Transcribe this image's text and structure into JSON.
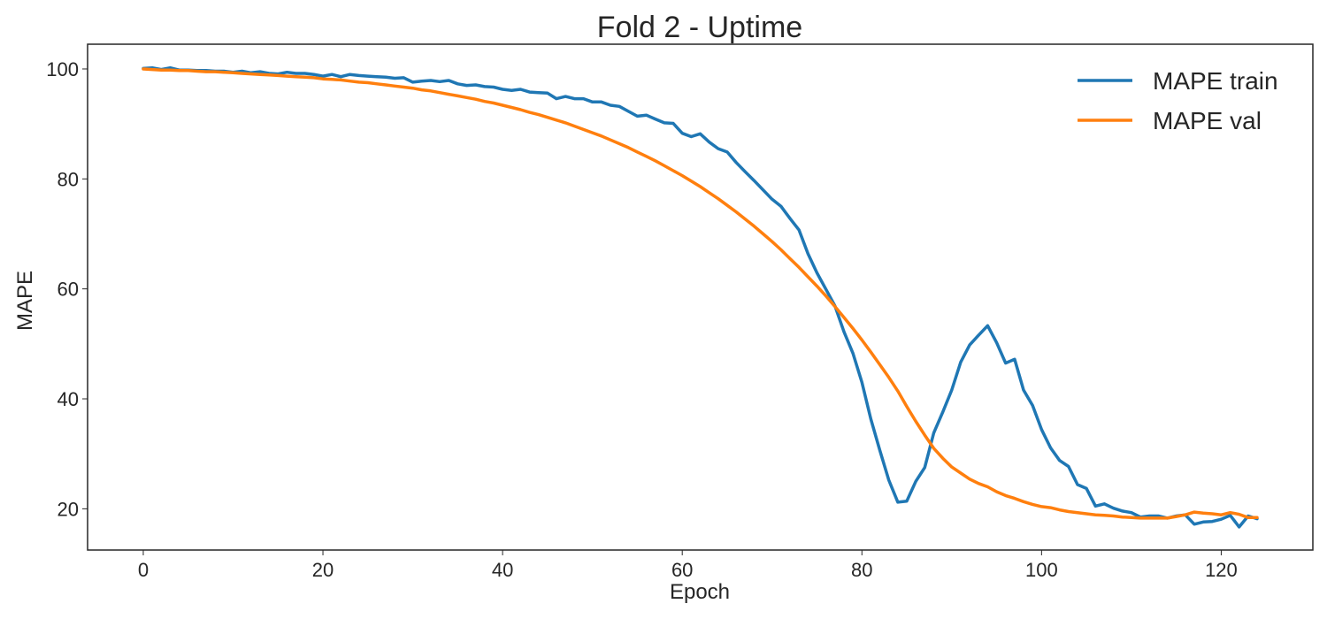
{
  "chart_data": {
    "type": "line",
    "title": "Fold 2 - Uptime",
    "xlabel": "Epoch",
    "ylabel": "MAPE",
    "xlim": [
      -6.2,
      130.2
    ],
    "ylim": [
      12.5,
      104.5
    ],
    "xticks": [
      0,
      20,
      40,
      60,
      80,
      100,
      120
    ],
    "yticks": [
      20,
      40,
      60,
      80,
      100
    ],
    "grid": false,
    "legend_position": "top-right",
    "series": [
      {
        "name": "MAPE train",
        "color": "#1f77b4",
        "x": [
          0,
          1,
          2,
          3,
          4,
          5,
          6,
          7,
          8,
          9,
          10,
          11,
          12,
          13,
          14,
          15,
          16,
          17,
          18,
          19,
          20,
          21,
          22,
          23,
          24,
          25,
          26,
          27,
          28,
          29,
          30,
          31,
          32,
          33,
          34,
          35,
          36,
          37,
          38,
          39,
          40,
          41,
          42,
          43,
          44,
          45,
          46,
          47,
          48,
          49,
          50,
          51,
          52,
          53,
          54,
          55,
          56,
          57,
          58,
          59,
          60,
          61,
          62,
          63,
          64,
          65,
          66,
          67,
          68,
          69,
          70,
          71,
          72,
          73,
          74,
          75,
          76,
          77,
          78,
          79,
          80,
          81,
          82,
          83,
          84,
          85,
          86,
          87,
          88,
          89,
          90,
          91,
          92,
          93,
          94,
          95,
          96,
          97,
          98,
          99,
          100,
          101,
          102,
          103,
          104,
          105,
          106,
          107,
          108,
          109,
          110,
          111,
          112,
          113,
          114,
          115,
          116,
          117,
          118,
          119,
          120,
          121,
          122,
          123,
          124
        ],
        "y": [
          100.1,
          100.2,
          99.9,
          100.2,
          99.8,
          99.8,
          99.7,
          99.7,
          99.6,
          99.6,
          99.4,
          99.6,
          99.3,
          99.5,
          99.2,
          99.1,
          99.4,
          99.2,
          99.2,
          99.0,
          98.7,
          99.0,
          98.6,
          99.0,
          98.8,
          98.7,
          98.6,
          98.5,
          98.3,
          98.4,
          97.6,
          97.8,
          97.9,
          97.7,
          97.9,
          97.3,
          97.0,
          97.1,
          96.8,
          96.7,
          96.3,
          96.1,
          96.3,
          95.8,
          95.7,
          95.6,
          94.6,
          95.0,
          94.6,
          94.6,
          94.0,
          94.0,
          93.4,
          93.2,
          92.3,
          91.4,
          91.6,
          90.9,
          90.2,
          90.1,
          88.3,
          87.7,
          88.2,
          86.7,
          85.5,
          84.9,
          83.0,
          81.3,
          79.7,
          78.0,
          76.3,
          75.0,
          72.8,
          70.7,
          66.4,
          62.9,
          59.9,
          56.9,
          52.2,
          48.3,
          43.0,
          36.3,
          30.6,
          25.2,
          21.2,
          21.4,
          25.0,
          27.5,
          33.8,
          37.6,
          41.6,
          46.7,
          49.8,
          51.6,
          53.3,
          50.2,
          46.5,
          47.2,
          41.6,
          38.8,
          34.4,
          31.1,
          28.8,
          27.7,
          24.4,
          23.7,
          20.5,
          20.9,
          20.1,
          19.6,
          19.3,
          18.5,
          18.7,
          18.7,
          18.3,
          18.7,
          18.9,
          17.2,
          17.6,
          17.7,
          18.1,
          18.8,
          16.7,
          18.7,
          18.2
        ]
      },
      {
        "name": "MAPE val",
        "color": "#ff7f0e",
        "x": [
          0,
          1,
          2,
          3,
          4,
          5,
          6,
          7,
          8,
          9,
          10,
          11,
          12,
          13,
          14,
          15,
          16,
          17,
          18,
          19,
          20,
          21,
          22,
          23,
          24,
          25,
          26,
          27,
          28,
          29,
          30,
          31,
          32,
          33,
          34,
          35,
          36,
          37,
          38,
          39,
          40,
          41,
          42,
          43,
          44,
          45,
          46,
          47,
          48,
          49,
          50,
          51,
          52,
          53,
          54,
          55,
          56,
          57,
          58,
          59,
          60,
          61,
          62,
          63,
          64,
          65,
          66,
          67,
          68,
          69,
          70,
          71,
          72,
          73,
          74,
          75,
          76,
          77,
          78,
          79,
          80,
          81,
          82,
          83,
          84,
          85,
          86,
          87,
          88,
          89,
          90,
          91,
          92,
          93,
          94,
          95,
          96,
          97,
          98,
          99,
          100,
          101,
          102,
          103,
          104,
          105,
          106,
          107,
          108,
          109,
          110,
          111,
          112,
          113,
          114,
          115,
          116,
          117,
          118,
          119,
          120,
          121,
          122,
          123,
          124
        ],
        "y": [
          100.0,
          99.9,
          99.8,
          99.8,
          99.7,
          99.7,
          99.6,
          99.5,
          99.5,
          99.4,
          99.3,
          99.2,
          99.1,
          99.0,
          98.9,
          98.8,
          98.7,
          98.6,
          98.5,
          98.4,
          98.2,
          98.1,
          98.0,
          97.8,
          97.6,
          97.5,
          97.3,
          97.1,
          96.9,
          96.7,
          96.5,
          96.2,
          96.0,
          95.7,
          95.4,
          95.1,
          94.8,
          94.5,
          94.1,
          93.8,
          93.4,
          93.0,
          92.6,
          92.1,
          91.7,
          91.2,
          90.7,
          90.2,
          89.6,
          89.0,
          88.4,
          87.8,
          87.1,
          86.4,
          85.7,
          84.9,
          84.1,
          83.3,
          82.4,
          81.5,
          80.6,
          79.6,
          78.6,
          77.5,
          76.4,
          75.2,
          74.0,
          72.7,
          71.4,
          70.0,
          68.6,
          67.1,
          65.5,
          63.9,
          62.2,
          60.5,
          58.7,
          56.8,
          54.8,
          52.8,
          50.7,
          48.5,
          46.2,
          43.9,
          41.4,
          38.6,
          35.9,
          33.4,
          31.0,
          29.2,
          27.6,
          26.5,
          25.4,
          24.6,
          24.0,
          23.1,
          22.4,
          21.9,
          21.3,
          20.8,
          20.4,
          20.2,
          19.8,
          19.5,
          19.3,
          19.1,
          18.9,
          18.8,
          18.7,
          18.5,
          18.4,
          18.3,
          18.3,
          18.3,
          18.3,
          18.6,
          18.9,
          19.4,
          19.2,
          19.1,
          18.9,
          19.3,
          19.0,
          18.4,
          18.4
        ]
      }
    ]
  }
}
